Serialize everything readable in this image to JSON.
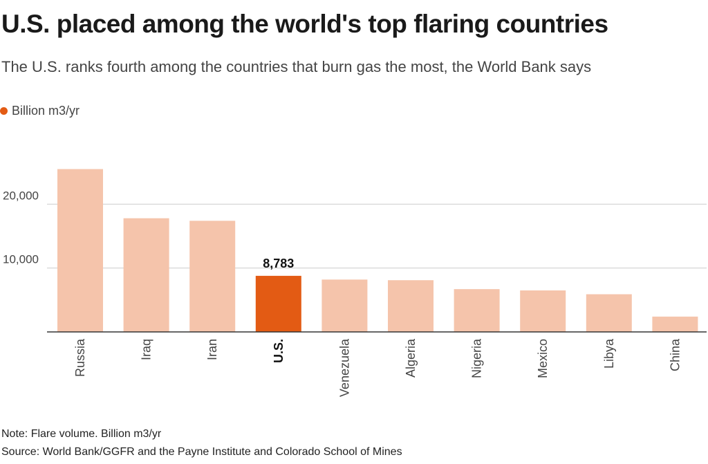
{
  "title": "U.S. placed among the world's top flaring countries",
  "subtitle": "The U.S. ranks fourth among the countries that burn gas the most, the World Bank says",
  "legend": {
    "label": "Billion m3/yr",
    "color": "#e35b14"
  },
  "note": "Note: Flare volume. Billion m3/yr",
  "source": "Source: World Bank/GGFR and the Payne Institute and Colorado School of Mines",
  "colors": {
    "bar": "#f5c4ab",
    "highlight": "#e35b14",
    "grid": "#cccccc",
    "axis": "#333333",
    "text": "#444444"
  },
  "chart_data": {
    "type": "bar",
    "categories": [
      "Russia",
      "Iraq",
      "Iran",
      "U.S.",
      "Venezuela",
      "Algeria",
      "Nigeria",
      "Mexico",
      "Libya",
      "China"
    ],
    "values": [
      25500,
      17800,
      17400,
      8783,
      8200,
      8100,
      6700,
      6500,
      5900,
      2400
    ],
    "highlight": "U.S.",
    "highlight_label": "8,783",
    "yticks": [
      10000,
      20000
    ],
    "ytick_labels": [
      "10,000",
      "20,000"
    ],
    "ylim": [
      0,
      26000
    ],
    "grid": true
  }
}
